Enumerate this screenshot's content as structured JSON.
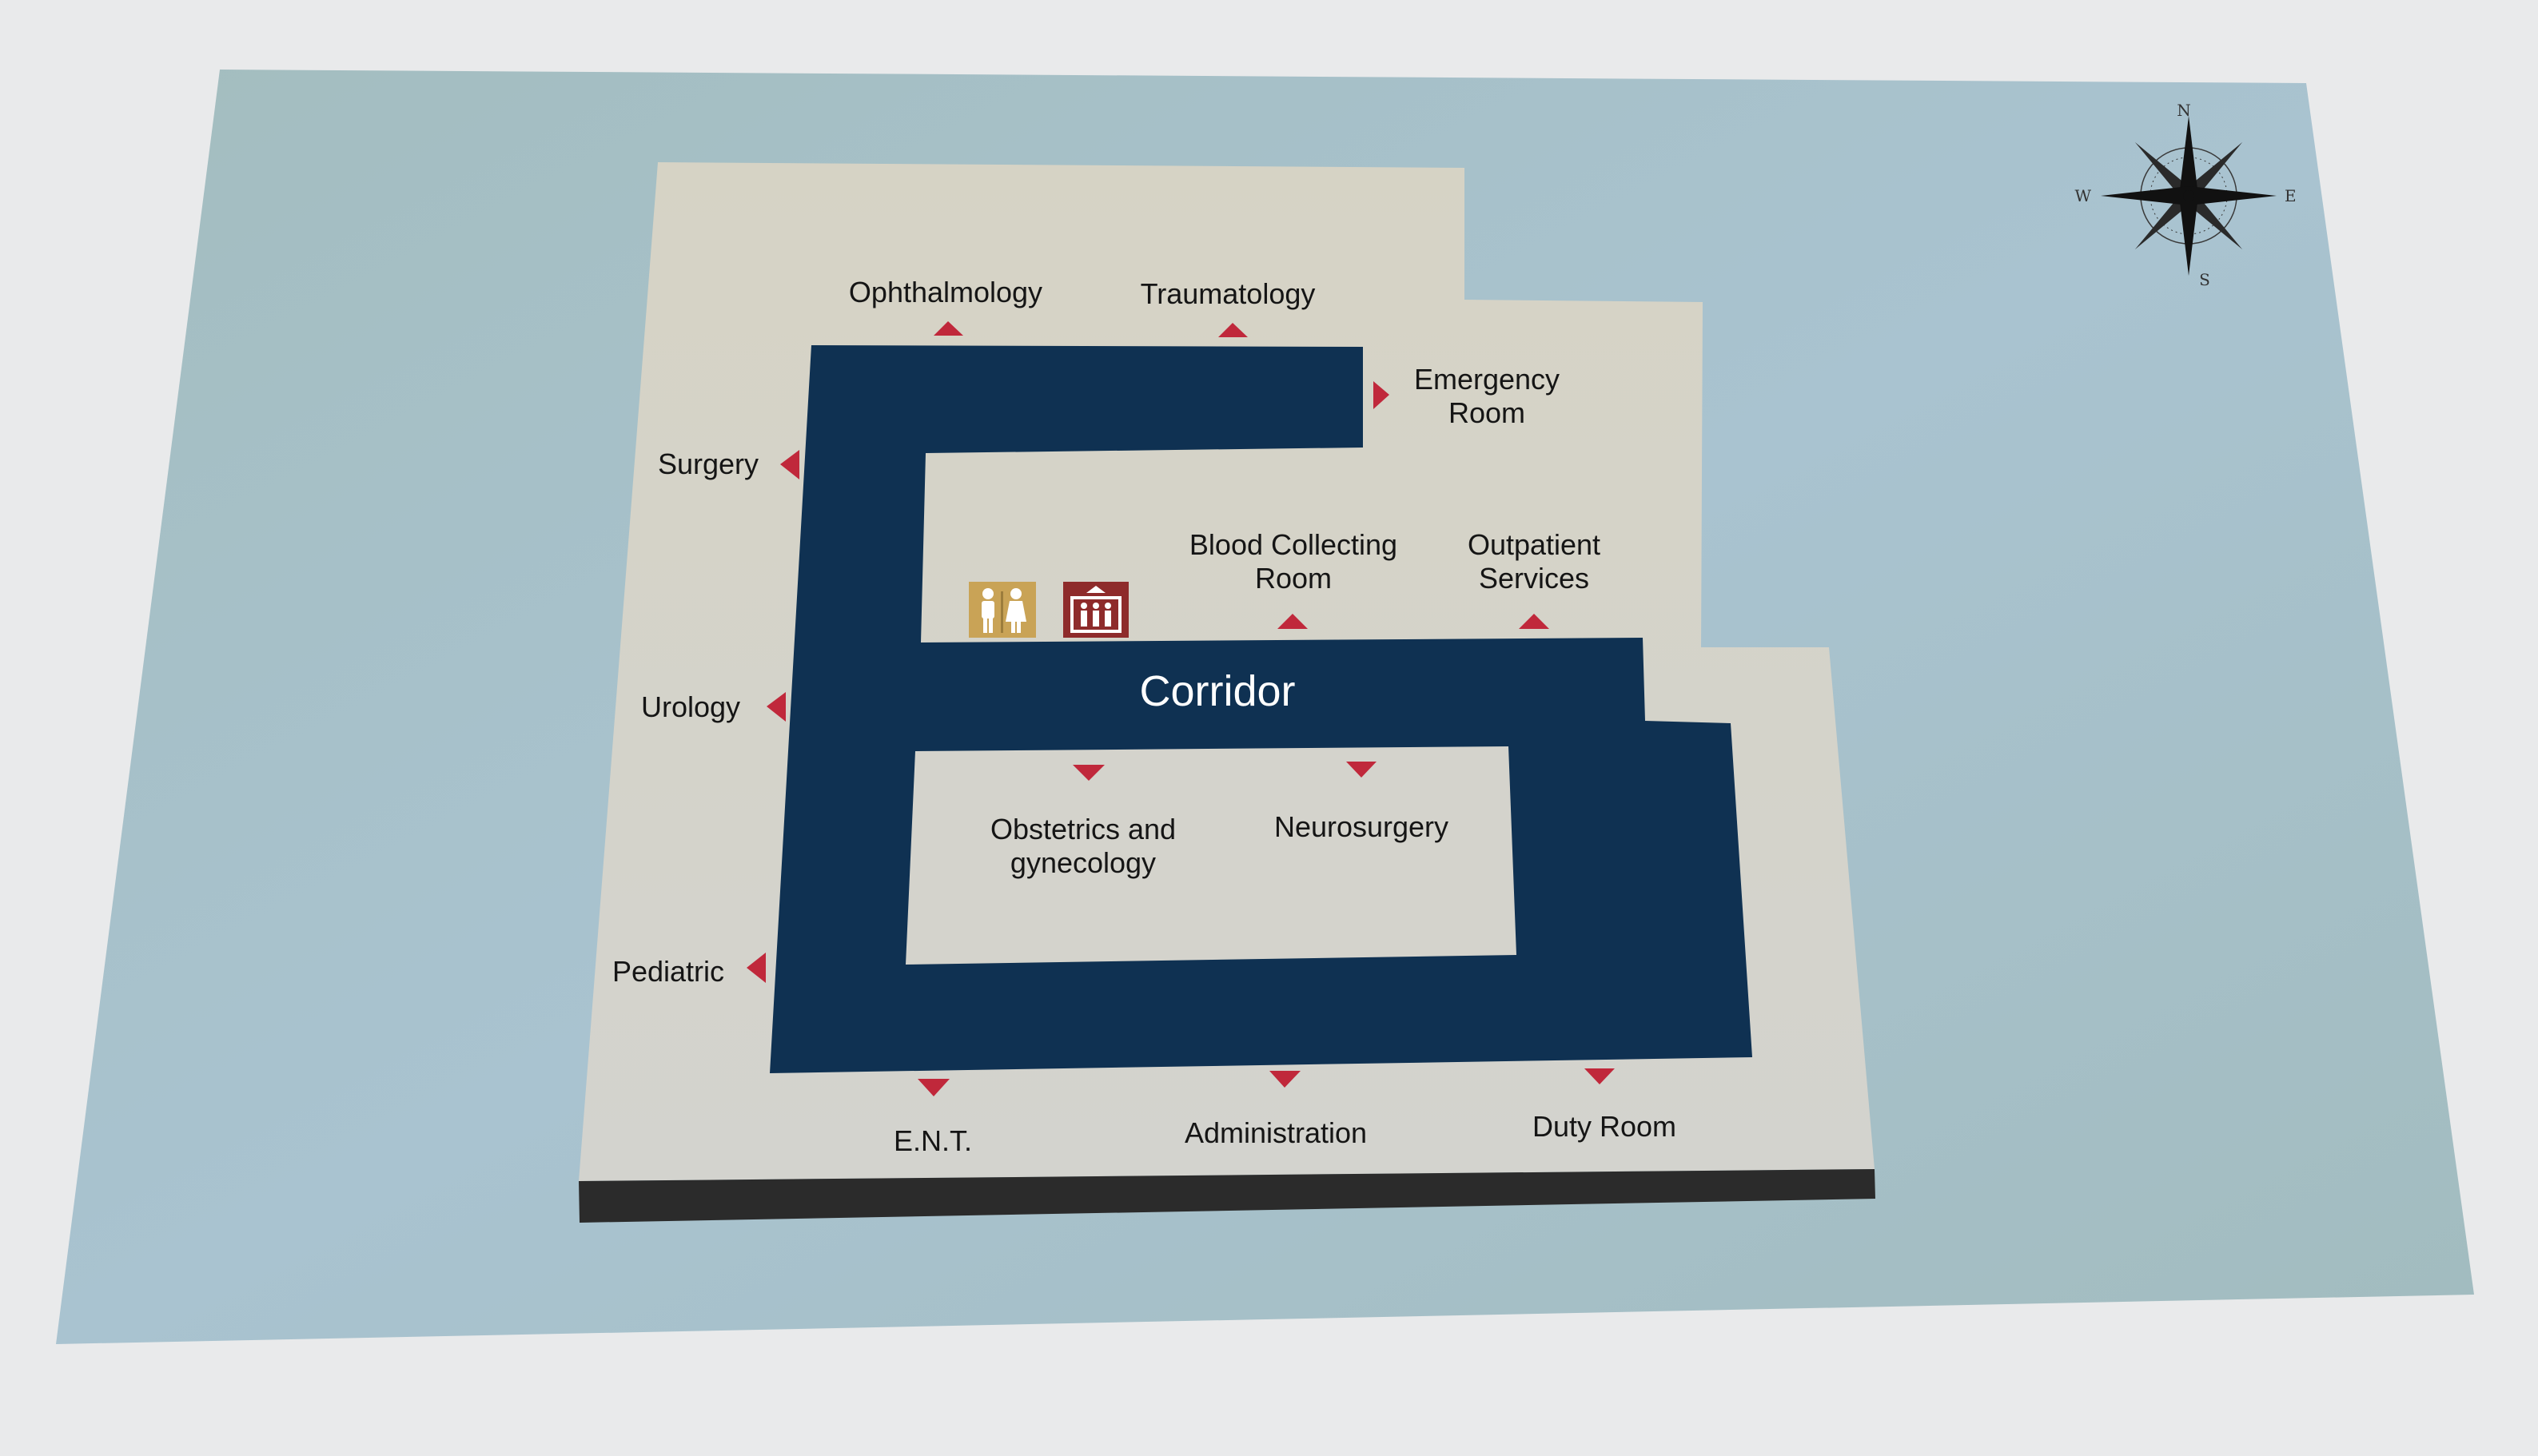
{
  "colors": {
    "page": "#e9eaeb",
    "board": "#a9c2c8",
    "floor": "#d8d6cc",
    "corridor": "#0f3152",
    "arrow": "#c0283b",
    "restroom_icon_bg": "#c9a356",
    "elevator_icon_bg": "#8e2b2b",
    "base_bar": "#2b2b2b"
  },
  "corridor": {
    "label": "Corridor"
  },
  "rooms": [
    {
      "key": "ophthalmology",
      "label": "Ophthalmology",
      "arrow": "up"
    },
    {
      "key": "traumatology",
      "label": "Traumatology",
      "arrow": "up"
    },
    {
      "key": "emergency",
      "label": "Emergency Room",
      "lines": [
        "Emergency",
        "Room"
      ],
      "arrow": "right"
    },
    {
      "key": "surgery",
      "label": "Surgery",
      "arrow": "left"
    },
    {
      "key": "blood",
      "label": "Blood Collecting Room",
      "lines": [
        "Blood Collecting",
        "Room"
      ],
      "arrow": "up"
    },
    {
      "key": "outpatient",
      "label": "Outpatient Services",
      "lines": [
        "Outpatient",
        "Services"
      ],
      "arrow": "up"
    },
    {
      "key": "urology",
      "label": "Urology",
      "arrow": "left"
    },
    {
      "key": "obstetrics",
      "label": "Obstetrics and gynecology",
      "lines": [
        "Obstetrics and",
        "gynecology"
      ],
      "arrow": "down"
    },
    {
      "key": "neurosurgery",
      "label": "Neurosurgery",
      "arrow": "down"
    },
    {
      "key": "pediatric",
      "label": "Pediatric",
      "arrow": "left"
    },
    {
      "key": "ent",
      "label": "E.N.T.",
      "arrow": "down"
    },
    {
      "key": "administration",
      "label": "Administration",
      "arrow": "down"
    },
    {
      "key": "duty",
      "label": "Duty Room",
      "arrow": "down"
    }
  ],
  "icons": [
    {
      "key": "restroom",
      "name": "restroom-icon"
    },
    {
      "key": "elevator",
      "name": "elevator-icon"
    }
  ],
  "compass": {
    "n": "N",
    "s": "S",
    "e": "E",
    "w": "W",
    "icon": "compass-rose-icon"
  }
}
